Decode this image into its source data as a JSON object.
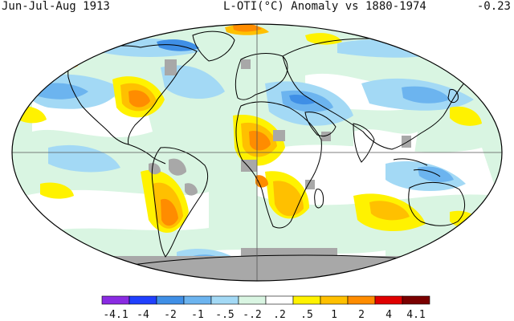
{
  "header": {
    "period": "Jun-Jul-Aug 1913",
    "title": "L-OTI(°C) Anomaly vs 1880-1974",
    "global_mean": "-0.23"
  },
  "legend": {
    "bins": [
      {
        "label": "-4.1",
        "color": "#8a2be2"
      },
      {
        "label": "-4",
        "color": "#2040ff"
      },
      {
        "label": "-2",
        "color": "#3f8fe6"
      },
      {
        "label": "-1",
        "color": "#6cb4ef"
      },
      {
        "label": "-.5",
        "color": "#a3d9f5"
      },
      {
        "label": "-.2",
        "color": "#d9f5e2"
      },
      {
        "label": ".2",
        "color": "#ffffff"
      },
      {
        "label": ".5",
        "color": "#fff200"
      },
      {
        "label": "1",
        "color": "#ffc000"
      },
      {
        "label": "2",
        "color": "#ff8c00"
      },
      {
        "label": "4",
        "color": "#e00000"
      },
      {
        "label": "4.1",
        "color": "#7a0000"
      }
    ],
    "label_order": [
      "-4.1",
      "-4",
      "-2",
      "-1",
      "-.5",
      "-.2",
      ".2",
      ".5",
      "1",
      "2",
      "4",
      "4.1"
    ]
  },
  "map": {
    "projection": "robinson",
    "nodata_color": "#a8a8a8",
    "coast_color": "#000000"
  }
}
